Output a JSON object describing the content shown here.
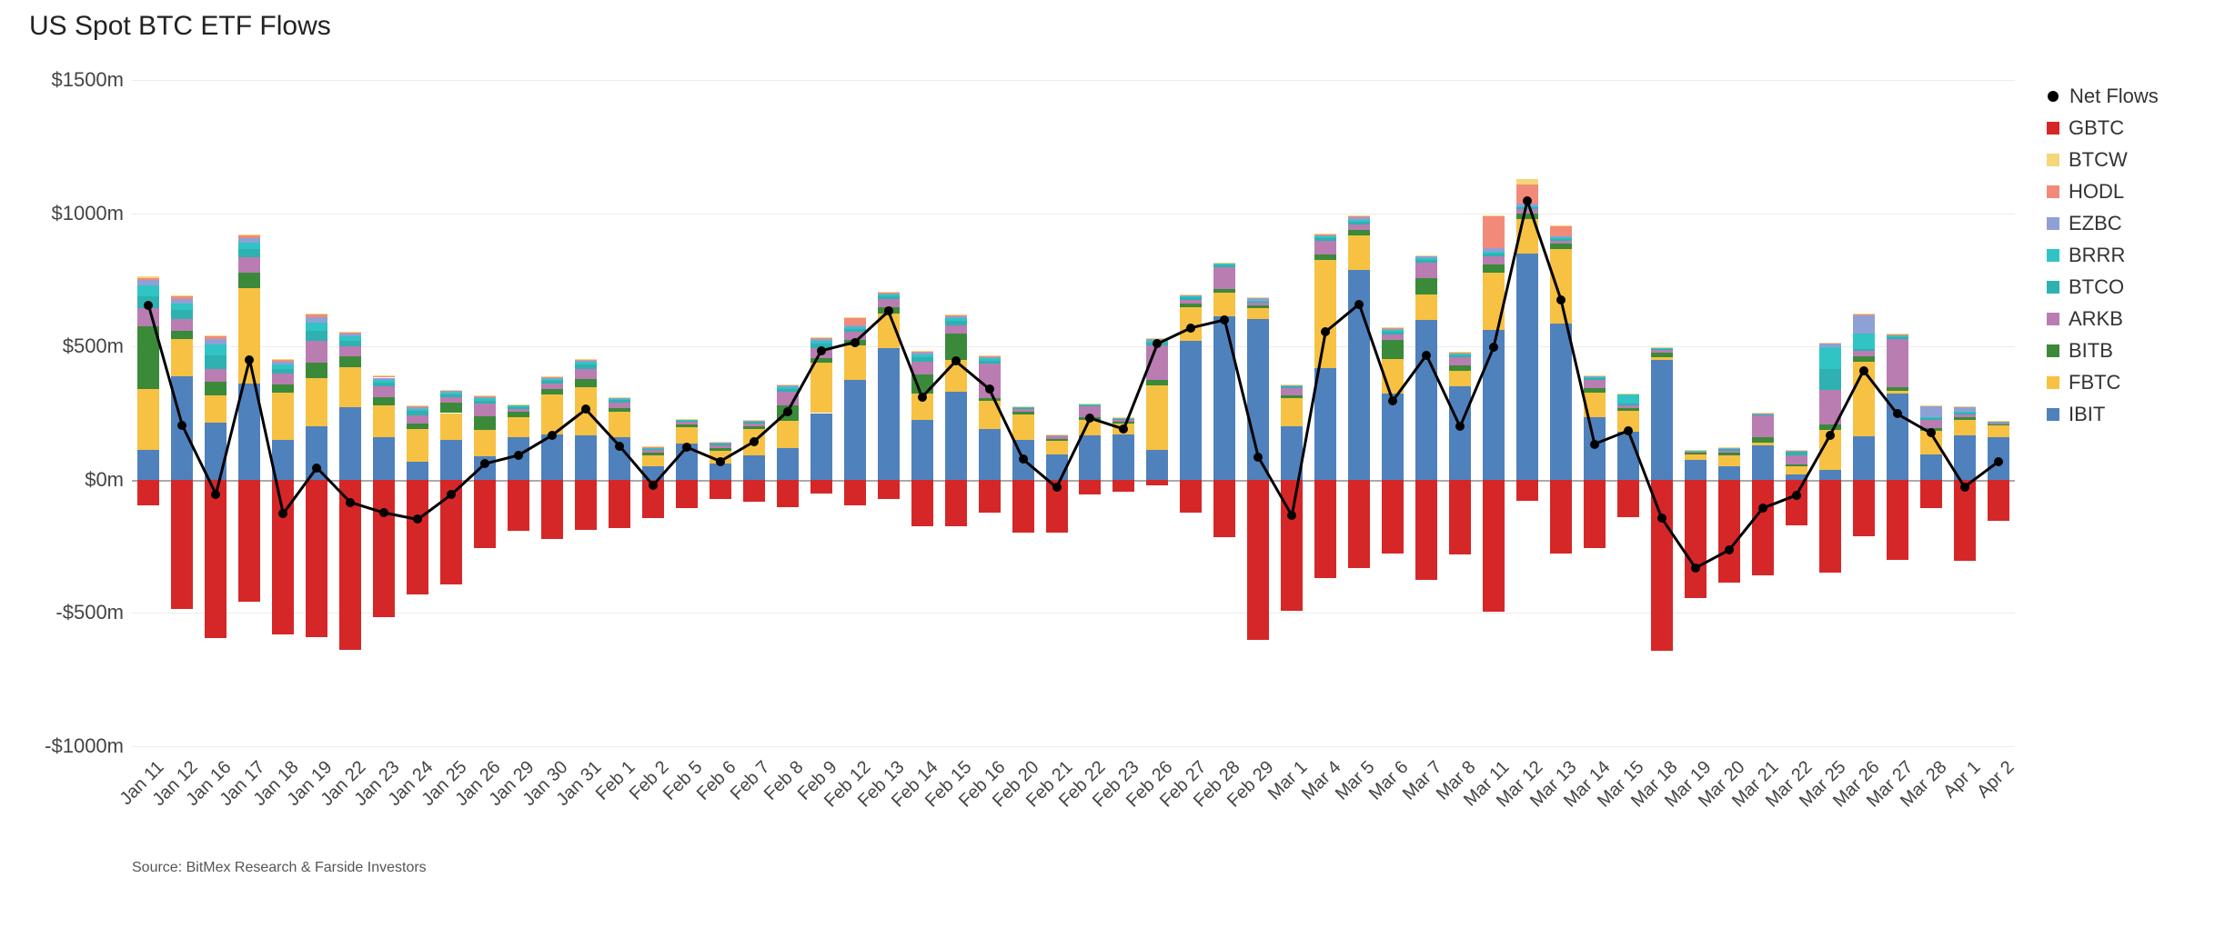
{
  "title": "US Spot BTC ETF Flows",
  "source": "Source: BitMex Research & Farside Investors",
  "chart": {
    "type": "stacked-bar-with-line",
    "background_color": "#ffffff",
    "grid_color": "#ececec",
    "zero_line_color": "#aaaaaa",
    "ylim": [
      -1000,
      1500
    ],
    "yticks": [
      -1000,
      -500,
      0,
      500,
      1000,
      1500
    ],
    "ytick_labels": [
      "-$1000m",
      "-$500m",
      "$0m",
      "$500m",
      "$1000m",
      "$1500m"
    ],
    "y_label_fontsize": 22,
    "x_label_fontsize": 20,
    "x_label_rotation_deg": -45,
    "title_fontsize": 30,
    "bar_width_ratio": 0.65,
    "net_line_color": "#000000",
    "net_line_width": 3,
    "net_marker_size": 10,
    "series_order_positive": [
      "IBIT",
      "FBTC",
      "BITB",
      "ARKB",
      "BTCO",
      "BRRR",
      "EZBC",
      "HODL",
      "BTCW"
    ],
    "series_negative": "GBTC",
    "colors": {
      "IBIT": "#4f81bd",
      "FBTC": "#f7c143",
      "BITB": "#3a8a3a",
      "ARKB": "#b97db1",
      "BTCO": "#2fb1b1",
      "BRRR": "#31c4c4",
      "EZBC": "#8fa0d6",
      "HODL": "#f28a7a",
      "BTCW": "#f5d77a",
      "GBTC": "#d62728",
      "NetFlows": "#000000"
    },
    "legend_items": [
      {
        "key": "NetFlows",
        "label": "Net Flows",
        "type": "dot"
      },
      {
        "key": "GBTC",
        "label": "GBTC",
        "type": "swatch"
      },
      {
        "key": "BTCW",
        "label": "BTCW",
        "type": "swatch"
      },
      {
        "key": "HODL",
        "label": "HODL",
        "type": "swatch"
      },
      {
        "key": "EZBC",
        "label": "EZBC",
        "type": "swatch"
      },
      {
        "key": "BRRR",
        "label": "BRRR",
        "type": "swatch"
      },
      {
        "key": "BTCO",
        "label": "BTCO",
        "type": "swatch"
      },
      {
        "key": "ARKB",
        "label": "ARKB",
        "type": "swatch"
      },
      {
        "key": "BITB",
        "label": "BITB",
        "type": "swatch"
      },
      {
        "key": "FBTC",
        "label": "FBTC",
        "type": "swatch"
      },
      {
        "key": "IBIT",
        "label": "IBIT",
        "type": "swatch"
      }
    ],
    "categories": [
      "Jan 11",
      "Jan 12",
      "Jan 16",
      "Jan 17",
      "Jan 18",
      "Jan 19",
      "Jan 22",
      "Jan 23",
      "Jan 24",
      "Jan 25",
      "Jan 26",
      "Jan 29",
      "Jan 30",
      "Jan 31",
      "Feb 1",
      "Feb 2",
      "Feb 5",
      "Feb 6",
      "Feb 7",
      "Feb 8",
      "Feb 9",
      "Feb 12",
      "Feb 13",
      "Feb 14",
      "Feb 15",
      "Feb 16",
      "Feb 20",
      "Feb 21",
      "Feb 22",
      "Feb 23",
      "Feb 26",
      "Feb 27",
      "Feb 28",
      "Feb 29",
      "Mar 1",
      "Mar 4",
      "Mar 5",
      "Mar 6",
      "Mar 7",
      "Mar 8",
      "Mar 11",
      "Mar 12",
      "Mar 13",
      "Mar 14",
      "Mar 15",
      "Mar 18",
      "Mar 19",
      "Mar 20",
      "Mar 21",
      "Mar 22",
      "Mar 25",
      "Mar 26",
      "Mar 27",
      "Mar 28",
      "Apr 1",
      "Apr 2"
    ],
    "data": [
      {
        "date": "Jan 11",
        "IBIT": 112,
        "FBTC": 227,
        "BITB": 238,
        "ARKB": 66,
        "BTCO": 45,
        "BRRR": 40,
        "EZBC": 20,
        "HODL": 8,
        "BTCW": 6,
        "GBTC": -95,
        "Net": 653
      },
      {
        "date": "Jan 12",
        "IBIT": 387,
        "FBTC": 140,
        "BITB": 30,
        "ARKB": 45,
        "BTCO": 35,
        "BRRR": 25,
        "EZBC": 15,
        "HODL": 10,
        "BTCW": 3,
        "GBTC": -484,
        "Net": 204
      },
      {
        "date": "Jan 16",
        "IBIT": 213,
        "FBTC": 104,
        "BITB": 50,
        "ARKB": 50,
        "BTCO": 50,
        "BRRR": 40,
        "EZBC": 20,
        "HODL": 10,
        "BTCW": 3,
        "GBTC": -594,
        "Net": -54
      },
      {
        "date": "Jan 17",
        "IBIT": 360,
        "FBTC": 360,
        "BITB": 56,
        "ARKB": 60,
        "BTCO": 30,
        "BRRR": 25,
        "EZBC": 15,
        "HODL": 10,
        "BTCW": 3,
        "GBTC": -458,
        "Net": 451
      },
      {
        "date": "Jan 18",
        "IBIT": 150,
        "FBTC": 177,
        "BITB": 30,
        "ARKB": 40,
        "BTCO": 20,
        "BRRR": 15,
        "EZBC": 10,
        "HODL": 8,
        "BTCW": 3,
        "GBTC": -580,
        "Net": -127
      },
      {
        "date": "Jan 19",
        "IBIT": 200,
        "FBTC": 180,
        "BITB": 60,
        "ARKB": 80,
        "BTCO": 40,
        "BRRR": 30,
        "EZBC": 20,
        "HODL": 10,
        "BTCW": 5,
        "GBTC": -590,
        "Net": 45
      },
      {
        "date": "Jan 22",
        "IBIT": 272,
        "FBTC": 150,
        "BITB": 40,
        "ARKB": 40,
        "BTCO": 20,
        "BRRR": 15,
        "EZBC": 10,
        "HODL": 5,
        "BTCW": 3,
        "GBTC": -640,
        "Net": -85
      },
      {
        "date": "Jan 23",
        "IBIT": 160,
        "FBTC": 120,
        "BITB": 30,
        "ARKB": 40,
        "BTCO": 15,
        "BRRR": 10,
        "EZBC": 8,
        "HODL": 5,
        "BTCW": 3,
        "GBTC": -515,
        "Net": -124
      },
      {
        "date": "Jan 24",
        "IBIT": 66,
        "FBTC": 126,
        "BITB": 20,
        "ARKB": 30,
        "BTCO": 15,
        "BRRR": 10,
        "EZBC": 5,
        "HODL": 5,
        "BTCW": 3,
        "GBTC": -429,
        "Net": -149
      },
      {
        "date": "Jan 25",
        "IBIT": 150,
        "FBTC": 100,
        "BITB": 40,
        "ARKB": 20,
        "BTCO": 10,
        "BRRR": 8,
        "EZBC": 5,
        "HODL": 3,
        "BTCW": 2,
        "GBTC": -394,
        "Net": -56
      },
      {
        "date": "Jan 26",
        "IBIT": 87,
        "FBTC": 100,
        "BITB": 50,
        "ARKB": 50,
        "BTCO": 10,
        "BRRR": 8,
        "EZBC": 5,
        "HODL": 3,
        "BTCW": 2,
        "GBTC": -255,
        "Net": 60
      },
      {
        "date": "Jan 29",
        "IBIT": 160,
        "FBTC": 75,
        "BITB": 20,
        "ARKB": 10,
        "BTCO": 8,
        "BRRR": 5,
        "EZBC": 3,
        "HODL": 2,
        "BTCW": 1,
        "GBTC": -192,
        "Net": 92
      },
      {
        "date": "Jan 30",
        "IBIT": 170,
        "FBTC": 150,
        "BITB": 20,
        "ARKB": 20,
        "BTCO": 10,
        "BRRR": 8,
        "EZBC": 5,
        "HODL": 3,
        "BTCW": 2,
        "GBTC": -221,
        "Net": 167
      },
      {
        "date": "Jan 31",
        "IBIT": 167,
        "FBTC": 180,
        "BITB": 30,
        "ARKB": 40,
        "BTCO": 15,
        "BRRR": 10,
        "EZBC": 5,
        "HODL": 3,
        "BTCW": 2,
        "GBTC": -188,
        "Net": 264
      },
      {
        "date": "Feb 1",
        "IBIT": 160,
        "FBTC": 95,
        "BITB": 15,
        "ARKB": 20,
        "BTCO": 8,
        "BRRR": 5,
        "EZBC": 3,
        "HODL": 2,
        "BTCW": 1,
        "GBTC": -182,
        "Net": 127
      },
      {
        "date": "Feb 2",
        "IBIT": 52,
        "FBTC": 40,
        "BITB": 10,
        "ARKB": 10,
        "BTCO": 5,
        "BRRR": 3,
        "EZBC": 2,
        "HODL": 1,
        "BTCW": 1,
        "GBTC": -145,
        "Net": -21
      },
      {
        "date": "Feb 5",
        "IBIT": 137,
        "FBTC": 60,
        "BITB": 10,
        "ARKB": 10,
        "BTCO": 5,
        "BRRR": 3,
        "EZBC": 2,
        "HODL": 1,
        "BTCW": 1,
        "GBTC": -107,
        "Net": 122
      },
      {
        "date": "Feb 6",
        "IBIT": 60,
        "FBTC": 50,
        "BITB": 10,
        "ARKB": 10,
        "BTCO": 5,
        "BRRR": 3,
        "EZBC": 2,
        "HODL": 1,
        "BTCW": 1,
        "GBTC": -73,
        "Net": 69
      },
      {
        "date": "Feb 7",
        "IBIT": 90,
        "FBTC": 100,
        "BITB": 12,
        "ARKB": 10,
        "BTCO": 5,
        "BRRR": 3,
        "EZBC": 2,
        "HODL": 1,
        "BTCW": 1,
        "GBTC": -81,
        "Net": 143
      },
      {
        "date": "Feb 8",
        "IBIT": 120,
        "FBTC": 100,
        "BITB": 60,
        "ARKB": 50,
        "BTCO": 10,
        "BRRR": 8,
        "EZBC": 5,
        "HODL": 3,
        "BTCW": 2,
        "GBTC": -102,
        "Net": 256
      },
      {
        "date": "Feb 9",
        "IBIT": 250,
        "FBTC": 190,
        "BITB": 15,
        "ARKB": 40,
        "BTCO": 15,
        "BRRR": 10,
        "EZBC": 8,
        "HODL": 5,
        "BTCW": 3,
        "GBTC": -52,
        "Net": 484
      },
      {
        "date": "Feb 12",
        "IBIT": 375,
        "FBTC": 130,
        "BITB": 20,
        "ARKB": 30,
        "BTCO": 10,
        "BRRR": 8,
        "EZBC": 5,
        "HODL": 30,
        "BTCW": 3,
        "GBTC": -95,
        "Net": 516
      },
      {
        "date": "Feb 13",
        "IBIT": 493,
        "FBTC": 130,
        "BITB": 24,
        "ARKB": 30,
        "BTCO": 10,
        "BRRR": 8,
        "EZBC": 5,
        "HODL": 3,
        "BTCW": 2,
        "GBTC": -73,
        "Net": 632
      },
      {
        "date": "Feb 14",
        "IBIT": 224,
        "FBTC": 100,
        "BITB": 70,
        "ARKB": 50,
        "BTCO": 15,
        "BRRR": 10,
        "EZBC": 8,
        "HODL": 5,
        "BTCW": 3,
        "GBTC": -175,
        "Net": 310
      },
      {
        "date": "Feb 15",
        "IBIT": 330,
        "FBTC": 120,
        "BITB": 100,
        "ARKB": 30,
        "BTCO": 15,
        "BRRR": 10,
        "EZBC": 8,
        "HODL": 5,
        "BTCW": 3,
        "GBTC": -176,
        "Net": 445
      },
      {
        "date": "Feb 16",
        "IBIT": 192,
        "FBTC": 105,
        "BITB": 10,
        "ARKB": 130,
        "BTCO": 10,
        "BRRR": 8,
        "EZBC": 5,
        "HODL": 3,
        "BTCW": 2,
        "GBTC": -125,
        "Net": 340
      },
      {
        "date": "Feb 20",
        "IBIT": 150,
        "FBTC": 95,
        "BITB": 10,
        "ARKB": 10,
        "BTCO": 5,
        "BRRR": 3,
        "EZBC": 2,
        "HODL": 1,
        "BTCW": 1,
        "GBTC": -200,
        "Net": 77
      },
      {
        "date": "Feb 21",
        "IBIT": 96,
        "FBTC": 50,
        "BITB": 8,
        "ARKB": 8,
        "BTCO": 3,
        "BRRR": 2,
        "EZBC": 1,
        "HODL": 1,
        "BTCW": 1,
        "GBTC": -199,
        "Net": -29
      },
      {
        "date": "Feb 22",
        "IBIT": 165,
        "FBTC": 60,
        "BITB": 10,
        "ARKB": 40,
        "BTCO": 5,
        "BRRR": 3,
        "EZBC": 2,
        "HODL": 1,
        "BTCW": 1,
        "GBTC": -56,
        "Net": 231
      },
      {
        "date": "Feb 23",
        "IBIT": 170,
        "FBTC": 40,
        "BITB": 8,
        "ARKB": 8,
        "BTCO": 3,
        "BRRR": 2,
        "EZBC": 1,
        "HODL": 1,
        "BTCW": 1,
        "GBTC": -44,
        "Net": 190
      },
      {
        "date": "Feb 26",
        "IBIT": 111,
        "FBTC": 243,
        "BITB": 20,
        "ARKB": 130,
        "BTCO": 10,
        "BRRR": 8,
        "EZBC": 5,
        "HODL": 3,
        "BTCW": 2,
        "GBTC": -22,
        "Net": 510
      },
      {
        "date": "Feb 27",
        "IBIT": 520,
        "FBTC": 126,
        "BITB": 15,
        "ARKB": 15,
        "BTCO": 8,
        "BRRR": 5,
        "EZBC": 3,
        "HODL": 2,
        "BTCW": 1,
        "GBTC": -125,
        "Net": 570
      },
      {
        "date": "Feb 28",
        "IBIT": 612,
        "FBTC": 90,
        "BITB": 15,
        "ARKB": 80,
        "BTCO": 8,
        "BRRR": 5,
        "EZBC": 3,
        "HODL": 2,
        "BTCW": 1,
        "GBTC": -216,
        "Net": 600
      },
      {
        "date": "Feb 29",
        "IBIT": 604,
        "FBTC": 40,
        "BITB": 10,
        "ARKB": 10,
        "BTCO": 5,
        "BRRR": 3,
        "EZBC": 10,
        "HODL": 2,
        "BTCW": 1,
        "GBTC": -600,
        "Net": 85
      },
      {
        "date": "Mar 1",
        "IBIT": 200,
        "FBTC": 105,
        "BITB": 10,
        "ARKB": 30,
        "BTCO": 5,
        "BRRR": 3,
        "EZBC": 2,
        "HODL": 1,
        "BTCW": 1,
        "GBTC": -492,
        "Net": -135
      },
      {
        "date": "Mar 4",
        "IBIT": 420,
        "FBTC": 405,
        "BITB": 20,
        "ARKB": 50,
        "BTCO": 10,
        "BRRR": 8,
        "EZBC": 5,
        "HODL": 3,
        "BTCW": 2,
        "GBTC": -368,
        "Net": 555
      },
      {
        "date": "Mar 5",
        "IBIT": 788,
        "FBTC": 130,
        "BITB": 20,
        "ARKB": 20,
        "BTCO": 10,
        "BRRR": 8,
        "EZBC": 10,
        "HODL": 3,
        "BTCW": 2,
        "GBTC": -332,
        "Net": 659
      },
      {
        "date": "Mar 6",
        "IBIT": 324,
        "FBTC": 130,
        "BITB": 70,
        "ARKB": 20,
        "BTCO": 10,
        "BRRR": 8,
        "EZBC": 5,
        "HODL": 3,
        "BTCW": 2,
        "GBTC": -276,
        "Net": 296
      },
      {
        "date": "Mar 7",
        "IBIT": 600,
        "FBTC": 95,
        "BITB": 60,
        "ARKB": 60,
        "BTCO": 10,
        "BRRR": 8,
        "EZBC": 5,
        "HODL": 3,
        "BTCW": 2,
        "GBTC": -375,
        "Net": 468
      },
      {
        "date": "Mar 8",
        "IBIT": 350,
        "FBTC": 60,
        "BITB": 20,
        "ARKB": 30,
        "BTCO": 8,
        "BRRR": 5,
        "EZBC": 3,
        "HODL": 2,
        "BTCW": 1,
        "GBTC": -280,
        "Net": 199
      },
      {
        "date": "Mar 11",
        "IBIT": 562,
        "FBTC": 215,
        "BITB": 30,
        "ARKB": 30,
        "BTCO": 10,
        "BRRR": 8,
        "EZBC": 15,
        "HODL": 120,
        "BTCW": 2,
        "GBTC": -494,
        "Net": 498
      },
      {
        "date": "Mar 12",
        "IBIT": 849,
        "FBTC": 130,
        "BITB": 20,
        "ARKB": 15,
        "BTCO": 8,
        "BRRR": 5,
        "EZBC": 10,
        "HODL": 70,
        "BTCW": 20,
        "GBTC": -80,
        "Net": 1047
      },
      {
        "date": "Mar 13",
        "IBIT": 586,
        "FBTC": 280,
        "BITB": 20,
        "ARKB": 10,
        "BTCO": 8,
        "BRRR": 5,
        "EZBC": 3,
        "HODL": 40,
        "BTCW": 1,
        "GBTC": -277,
        "Net": 676
      },
      {
        "date": "Mar 14",
        "IBIT": 233,
        "FBTC": 95,
        "BITB": 15,
        "ARKB": 30,
        "BTCO": 8,
        "BRRR": 5,
        "EZBC": 3,
        "HODL": 2,
        "BTCW": 1,
        "GBTC": -258,
        "Net": 134
      },
      {
        "date": "Mar 15",
        "IBIT": 180,
        "FBTC": 80,
        "BITB": 10,
        "ARKB": 10,
        "BTCO": 5,
        "BRRR": 35,
        "EZBC": 2,
        "HODL": 1,
        "BTCW": 1,
        "GBTC": -140,
        "Net": 184
      },
      {
        "date": "Mar 18",
        "IBIT": 451,
        "FBTC": 10,
        "BITB": 15,
        "ARKB": 10,
        "BTCO": 5,
        "BRRR": 3,
        "EZBC": 2,
        "HODL": 1,
        "BTCW": 1,
        "GBTC": -643,
        "Net": -145
      },
      {
        "date": "Mar 19",
        "IBIT": 75,
        "FBTC": 20,
        "BITB": 5,
        "ARKB": 5,
        "BTCO": 3,
        "BRRR": 2,
        "EZBC": 1,
        "HODL": 1,
        "BTCW": 1,
        "GBTC": -444,
        "Net": -331
      },
      {
        "date": "Mar 20",
        "IBIT": 50,
        "FBTC": 40,
        "BITB": 10,
        "ARKB": 10,
        "BTCO": 5,
        "BRRR": 3,
        "EZBC": 2,
        "HODL": 1,
        "BTCW": 1,
        "GBTC": -386,
        "Net": -264
      },
      {
        "date": "Mar 21",
        "IBIT": 130,
        "FBTC": 10,
        "BITB": 20,
        "ARKB": 80,
        "BTCO": 5,
        "BRRR": 3,
        "EZBC": 2,
        "HODL": 1,
        "BTCW": 1,
        "GBTC": -359,
        "Net": -107
      },
      {
        "date": "Mar 22",
        "IBIT": 19,
        "FBTC": 30,
        "BITB": 8,
        "ARKB": 35,
        "BTCO": 15,
        "BRRR": 2,
        "EZBC": 1,
        "HODL": 1,
        "BTCW": 1,
        "GBTC": -170,
        "Net": -58
      },
      {
        "date": "Mar 25",
        "IBIT": 36,
        "FBTC": 150,
        "BITB": 20,
        "ARKB": 130,
        "BTCO": 80,
        "BRRR": 80,
        "EZBC": 15,
        "HODL": 3,
        "BTCW": 2,
        "GBTC": -350,
        "Net": 166
      },
      {
        "date": "Mar 26",
        "IBIT": 162,
        "FBTC": 280,
        "BITB": 20,
        "ARKB": 20,
        "BTCO": 10,
        "BRRR": 55,
        "EZBC": 70,
        "HODL": 3,
        "BTCW": 2,
        "GBTC": -212,
        "Net": 410
      },
      {
        "date": "Mar 27",
        "IBIT": 323,
        "FBTC": 10,
        "BITB": 15,
        "ARKB": 180,
        "BTCO": 8,
        "BRRR": 5,
        "EZBC": 3,
        "HODL": 2,
        "BTCW": 1,
        "GBTC": -300,
        "Net": 247
      },
      {
        "date": "Mar 28",
        "IBIT": 95,
        "FBTC": 90,
        "BITB": 10,
        "ARKB": 30,
        "BTCO": 5,
        "BRRR": 3,
        "EZBC": 45,
        "HODL": 1,
        "BTCW": 1,
        "GBTC": -105,
        "Net": 175
      },
      {
        "date": "Apr 1",
        "IBIT": 166,
        "FBTC": 60,
        "BITB": 10,
        "ARKB": 10,
        "BTCO": 5,
        "BRRR": 3,
        "EZBC": 20,
        "HODL": 1,
        "BTCW": 1,
        "GBTC": -303,
        "Net": -27
      },
      {
        "date": "Apr 2",
        "IBIT": 160,
        "FBTC": 44,
        "BITB": 5,
        "ARKB": 5,
        "BTCO": 3,
        "BRRR": 2,
        "EZBC": 1,
        "HODL": 1,
        "BTCW": 1,
        "GBTC": -155,
        "Net": 67
      }
    ]
  }
}
